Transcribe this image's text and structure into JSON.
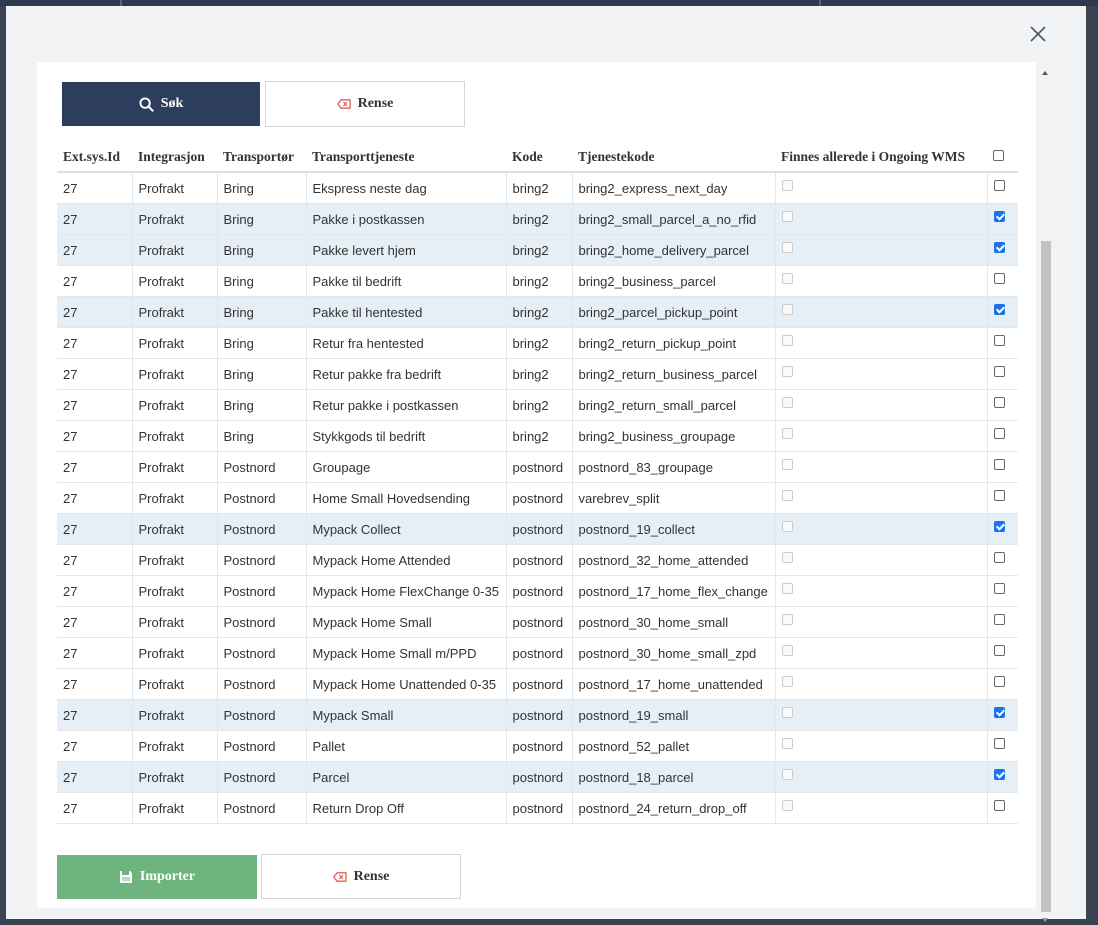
{
  "dialog": {
    "close_label": "×"
  },
  "toolbar": {
    "search_label": "Søk",
    "clear_label": "Rense"
  },
  "footer": {
    "import_label": "Importer",
    "clear_label": "Rense"
  },
  "table": {
    "headers": [
      "Ext.sys.Id",
      "Integrasjon",
      "Transportør",
      "Transporttjeneste",
      "Kode",
      "Tjenestekode",
      "Finnes allerede i Ongoing WMS"
    ],
    "header_select_all_checked": false,
    "rows": [
      {
        "ext_id": "27",
        "integration": "Profrakt",
        "carrier": "Bring",
        "service": "Ekspress neste dag",
        "code": "bring2",
        "service_code": "bring2_express_next_day",
        "exists": false,
        "selected": false
      },
      {
        "ext_id": "27",
        "integration": "Profrakt",
        "carrier": "Bring",
        "service": "Pakke i postkassen",
        "code": "bring2",
        "service_code": "bring2_small_parcel_a_no_rfid",
        "exists": false,
        "selected": true
      },
      {
        "ext_id": "27",
        "integration": "Profrakt",
        "carrier": "Bring",
        "service": "Pakke levert hjem",
        "code": "bring2",
        "service_code": "bring2_home_delivery_parcel",
        "exists": false,
        "selected": true
      },
      {
        "ext_id": "27",
        "integration": "Profrakt",
        "carrier": "Bring",
        "service": "Pakke til bedrift",
        "code": "bring2",
        "service_code": "bring2_business_parcel",
        "exists": false,
        "selected": false
      },
      {
        "ext_id": "27",
        "integration": "Profrakt",
        "carrier": "Bring",
        "service": "Pakke til hentested",
        "code": "bring2",
        "service_code": "bring2_parcel_pickup_point",
        "exists": false,
        "selected": true
      },
      {
        "ext_id": "27",
        "integration": "Profrakt",
        "carrier": "Bring",
        "service": "Retur fra hentested",
        "code": "bring2",
        "service_code": "bring2_return_pickup_point",
        "exists": false,
        "selected": false
      },
      {
        "ext_id": "27",
        "integration": "Profrakt",
        "carrier": "Bring",
        "service": "Retur pakke fra bedrift",
        "code": "bring2",
        "service_code": "bring2_return_business_parcel",
        "exists": false,
        "selected": false
      },
      {
        "ext_id": "27",
        "integration": "Profrakt",
        "carrier": "Bring",
        "service": "Retur pakke i postkassen",
        "code": "bring2",
        "service_code": "bring2_return_small_parcel",
        "exists": false,
        "selected": false
      },
      {
        "ext_id": "27",
        "integration": "Profrakt",
        "carrier": "Bring",
        "service": "Stykkgods til bedrift",
        "code": "bring2",
        "service_code": "bring2_business_groupage",
        "exists": false,
        "selected": false
      },
      {
        "ext_id": "27",
        "integration": "Profrakt",
        "carrier": "Postnord",
        "service": "Groupage",
        "code": "postnord",
        "service_code": "postnord_83_groupage",
        "exists": false,
        "selected": false
      },
      {
        "ext_id": "27",
        "integration": "Profrakt",
        "carrier": "Postnord",
        "service": "Home Small Hovedsending",
        "code": "postnord",
        "service_code": "varebrev_split",
        "exists": false,
        "selected": false
      },
      {
        "ext_id": "27",
        "integration": "Profrakt",
        "carrier": "Postnord",
        "service": "Mypack Collect",
        "code": "postnord",
        "service_code": "postnord_19_collect",
        "exists": false,
        "selected": true
      },
      {
        "ext_id": "27",
        "integration": "Profrakt",
        "carrier": "Postnord",
        "service": "Mypack Home Attended",
        "code": "postnord",
        "service_code": "postnord_32_home_attended",
        "exists": false,
        "selected": false
      },
      {
        "ext_id": "27",
        "integration": "Profrakt",
        "carrier": "Postnord",
        "service": "Mypack Home FlexChange 0-35",
        "code": "postnord",
        "service_code": "postnord_17_home_flex_change",
        "exists": false,
        "selected": false
      },
      {
        "ext_id": "27",
        "integration": "Profrakt",
        "carrier": "Postnord",
        "service": "Mypack Home Small",
        "code": "postnord",
        "service_code": "postnord_30_home_small",
        "exists": false,
        "selected": false
      },
      {
        "ext_id": "27",
        "integration": "Profrakt",
        "carrier": "Postnord",
        "service": "Mypack Home Small m/PPD",
        "code": "postnord",
        "service_code": "postnord_30_home_small_zpd",
        "exists": false,
        "selected": false
      },
      {
        "ext_id": "27",
        "integration": "Profrakt",
        "carrier": "Postnord",
        "service": "Mypack Home Unattended 0-35",
        "code": "postnord",
        "service_code": "postnord_17_home_unattended",
        "exists": false,
        "selected": false
      },
      {
        "ext_id": "27",
        "integration": "Profrakt",
        "carrier": "Postnord",
        "service": "Mypack Small",
        "code": "postnord",
        "service_code": "postnord_19_small",
        "exists": false,
        "selected": true
      },
      {
        "ext_id": "27",
        "integration": "Profrakt",
        "carrier": "Postnord",
        "service": "Pallet",
        "code": "postnord",
        "service_code": "postnord_52_pallet",
        "exists": false,
        "selected": false
      },
      {
        "ext_id": "27",
        "integration": "Profrakt",
        "carrier": "Postnord",
        "service": "Parcel",
        "code": "postnord",
        "service_code": "postnord_18_parcel",
        "exists": false,
        "selected": true
      },
      {
        "ext_id": "27",
        "integration": "Profrakt",
        "carrier": "Postnord",
        "service": "Return Drop Off",
        "code": "postnord",
        "service_code": "postnord_24_return_drop_off",
        "exists": false,
        "selected": false
      }
    ]
  },
  "icons": {
    "search": "search-icon",
    "clear": "eraser-icon",
    "import": "save-icon",
    "close": "close-icon"
  },
  "colors": {
    "search_button": "#2d3d5e",
    "import_button": "#6eb47f",
    "selected_row": "#e6eef6",
    "checkbox_checked": "#1a73e8",
    "clear_icon": "#e0605a"
  }
}
